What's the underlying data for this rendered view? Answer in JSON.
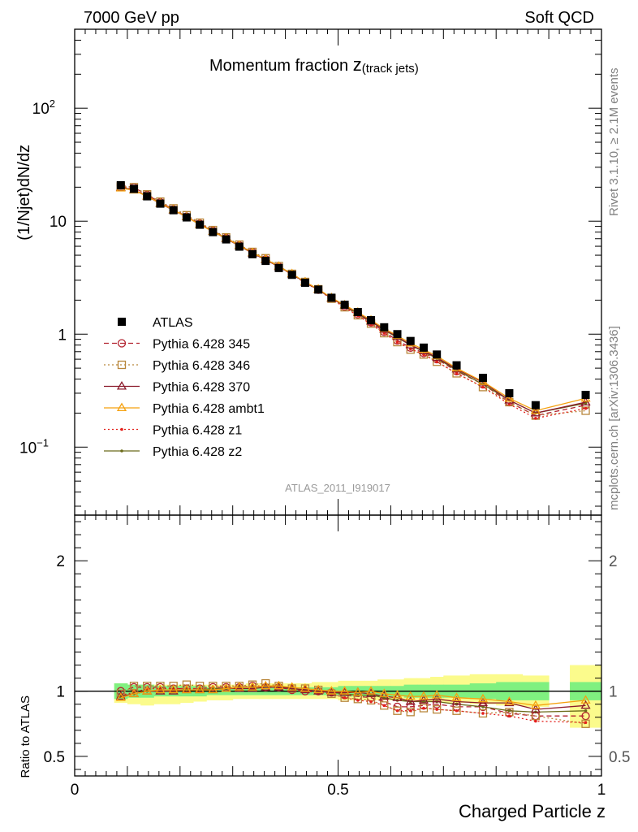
{
  "header": {
    "left": "7000 GeV pp",
    "right": "Soft QCD"
  },
  "side_labels": {
    "rivet": "Rivet 3.1.10, ≥ 2.1M events",
    "mcplots": "mcplots.cern.ch [arXiv:1306.3436]"
  },
  "watermark": "ATLAS_2011_I919017",
  "colors": {
    "atlas": "#000000",
    "p345": "#b2222f",
    "p346": "#b8863b",
    "p370": "#8b1a2b",
    "ambt1": "#f5a10f",
    "z1": "#e3211c",
    "z2": "#6b6b1a",
    "band_inner": "#80f080",
    "band_outer": "#fbfb8c"
  },
  "chart_data": [
    {
      "type": "scatter",
      "title_main": "Momentum fraction ",
      "title_var": "z",
      "title_sub": "(track jets)",
      "ylabel": "(1/Njet)dN/dz",
      "xlim": [
        0,
        1
      ],
      "ylim_log": [
        0.025,
        500
      ],
      "yscale": "log",
      "yticks": [
        {
          "value": 0.1,
          "label": "10",
          "exp": "−1"
        },
        {
          "value": 1,
          "label": "1",
          "exp": ""
        },
        {
          "value": 10,
          "label": "10",
          "exp": ""
        },
        {
          "value": 100,
          "label": "10",
          "exp": "2"
        }
      ],
      "legend_position": "left-middle",
      "x": [
        0.0875,
        0.1125,
        0.1375,
        0.1625,
        0.1875,
        0.2125,
        0.2375,
        0.2625,
        0.2875,
        0.3125,
        0.3375,
        0.3625,
        0.3875,
        0.4125,
        0.4375,
        0.4625,
        0.4875,
        0.5125,
        0.5375,
        0.5625,
        0.5875,
        0.6125,
        0.6375,
        0.6625,
        0.6875,
        0.725,
        0.775,
        0.825,
        0.875,
        0.97
      ],
      "series": [
        {
          "name": "ATLAS",
          "key": "atlas",
          "marker": "square",
          "line": "none",
          "values": [
            20.8,
            19.3,
            16.6,
            14.3,
            12.5,
            10.8,
            9.3,
            8.0,
            6.9,
            5.95,
            5.1,
            4.45,
            3.85,
            3.35,
            2.85,
            2.48,
            2.1,
            1.82,
            1.57,
            1.33,
            1.15,
            1.0,
            0.87,
            0.76,
            0.66,
            0.53,
            0.41,
            0.3,
            0.235,
            0.29
          ]
        },
        {
          "name": "Pythia 6.428 345",
          "key": "p345",
          "marker": "circle-open",
          "line": "dashed",
          "values": [
            20.8,
            19.9,
            17.1,
            14.7,
            12.7,
            11.0,
            9.5,
            8.2,
            7.1,
            6.1,
            5.3,
            4.6,
            3.95,
            3.38,
            2.85,
            2.47,
            2.09,
            1.76,
            1.5,
            1.27,
            1.05,
            0.88,
            0.76,
            0.68,
            0.6,
            0.47,
            0.36,
            0.25,
            0.19,
            0.235
          ]
        },
        {
          "name": "Pythia 6.428 346",
          "key": "p346",
          "marker": "square-open",
          "line": "dotted",
          "values": [
            20.3,
            20.0,
            17.3,
            14.9,
            13.0,
            11.3,
            9.7,
            8.35,
            7.2,
            6.2,
            5.35,
            4.7,
            4.0,
            3.42,
            2.9,
            2.5,
            2.06,
            1.73,
            1.47,
            1.24,
            1.02,
            0.85,
            0.73,
            0.66,
            0.57,
            0.45,
            0.34,
            0.25,
            0.19,
            0.21
          ]
        },
        {
          "name": "Pythia 6.428 370",
          "key": "p370",
          "marker": "triangle-open",
          "line": "solid",
          "values": [
            19.8,
            18.9,
            16.6,
            14.3,
            12.5,
            10.9,
            9.35,
            8.1,
            7.0,
            6.05,
            5.2,
            4.55,
            3.95,
            3.4,
            2.88,
            2.48,
            2.07,
            1.8,
            1.55,
            1.3,
            1.1,
            0.95,
            0.8,
            0.71,
            0.62,
            0.49,
            0.375,
            0.26,
            0.2,
            0.25
          ]
        },
        {
          "name": "Pythia 6.428 ambt1",
          "key": "ambt1",
          "marker": "triangle-open",
          "line": "solid",
          "values": [
            19.6,
            18.8,
            16.6,
            14.4,
            12.6,
            10.9,
            9.35,
            8.1,
            7.05,
            6.1,
            5.25,
            4.6,
            3.98,
            3.42,
            2.9,
            2.5,
            2.1,
            1.81,
            1.56,
            1.33,
            1.12,
            0.97,
            0.83,
            0.73,
            0.64,
            0.5,
            0.38,
            0.27,
            0.21,
            0.27
          ]
        },
        {
          "name": "Pythia 6.428 z1",
          "key": "z1",
          "marker": "dot",
          "line": "dotted",
          "values": [
            20.2,
            19.1,
            16.9,
            14.5,
            12.7,
            11.0,
            9.5,
            8.25,
            7.1,
            6.1,
            5.3,
            4.6,
            3.95,
            3.4,
            2.85,
            2.45,
            2.05,
            1.72,
            1.46,
            1.22,
            1.02,
            0.85,
            0.74,
            0.66,
            0.57,
            0.45,
            0.34,
            0.24,
            0.18,
            0.22
          ]
        },
        {
          "name": "Pythia 6.428 z2",
          "key": "z2",
          "marker": "dot",
          "line": "solid",
          "values": [
            20.0,
            18.9,
            16.7,
            14.4,
            12.6,
            10.9,
            9.4,
            8.15,
            7.05,
            6.1,
            5.25,
            4.6,
            3.98,
            3.42,
            2.88,
            2.47,
            2.08,
            1.78,
            1.52,
            1.29,
            1.09,
            0.93,
            0.8,
            0.7,
            0.61,
            0.48,
            0.36,
            0.26,
            0.2,
            0.245
          ]
        }
      ]
    },
    {
      "type": "scatter",
      "ylabel": "Ratio to ATLAS",
      "xlabel": "Charged Particle z",
      "xlim": [
        0,
        1
      ],
      "ylim": [
        0.35,
        2.35
      ],
      "yticks": [
        {
          "value": 0.5,
          "label": "0.5"
        },
        {
          "value": 1,
          "label": "1"
        },
        {
          "value": 2,
          "label": "2"
        }
      ],
      "xticks": [
        {
          "value": 0,
          "label": "0"
        },
        {
          "value": 0.5,
          "label": "0.5"
        },
        {
          "value": 1,
          "label": "1"
        }
      ],
      "bands": {
        "edges": [
          0.075,
          0.1,
          0.125,
          0.15,
          0.175,
          0.2,
          0.225,
          0.25,
          0.275,
          0.3,
          0.325,
          0.35,
          0.375,
          0.4,
          0.425,
          0.45,
          0.475,
          0.5,
          0.525,
          0.55,
          0.575,
          0.6,
          0.625,
          0.65,
          0.675,
          0.7,
          0.75,
          0.8,
          0.85,
          0.9,
          0.94,
          1.0
        ],
        "gaps": [
          29
        ],
        "inner_lo": [
          0.94,
          0.95,
          0.95,
          0.96,
          0.96,
          0.96,
          0.96,
          0.97,
          0.97,
          0.97,
          0.97,
          0.97,
          0.97,
          0.97,
          0.97,
          0.97,
          0.97,
          0.96,
          0.96,
          0.96,
          0.96,
          0.96,
          0.95,
          0.95,
          0.95,
          0.95,
          0.94,
          0.93,
          0.93,
          0,
          0.93
        ],
        "inner_hi": [
          1.06,
          1.05,
          1.05,
          1.04,
          1.04,
          1.04,
          1.04,
          1.03,
          1.03,
          1.03,
          1.03,
          1.03,
          1.03,
          1.03,
          1.03,
          1.03,
          1.03,
          1.04,
          1.04,
          1.04,
          1.04,
          1.04,
          1.05,
          1.05,
          1.05,
          1.05,
          1.06,
          1.07,
          1.07,
          0,
          1.07
        ],
        "outer_lo": [
          0.91,
          0.9,
          0.89,
          0.9,
          0.9,
          0.91,
          0.92,
          0.93,
          0.93,
          0.94,
          0.94,
          0.94,
          0.94,
          0.94,
          0.94,
          0.94,
          0.94,
          0.93,
          0.93,
          0.93,
          0.93,
          0.93,
          0.92,
          0.92,
          0.92,
          0.91,
          0.9,
          0.89,
          0.88,
          0,
          0.72
        ],
        "outer_hi": [
          1.06,
          1.05,
          1.05,
          1.05,
          1.05,
          1.05,
          1.05,
          1.05,
          1.05,
          1.05,
          1.06,
          1.06,
          1.06,
          1.06,
          1.06,
          1.07,
          1.07,
          1.08,
          1.08,
          1.08,
          1.09,
          1.09,
          1.1,
          1.1,
          1.11,
          1.12,
          1.13,
          1.13,
          1.12,
          0,
          1.2
        ]
      },
      "x": [
        0.0875,
        0.1125,
        0.1375,
        0.1625,
        0.1875,
        0.2125,
        0.2375,
        0.2625,
        0.2875,
        0.3125,
        0.3375,
        0.3625,
        0.3875,
        0.4125,
        0.4375,
        0.4625,
        0.4875,
        0.5125,
        0.5375,
        0.5625,
        0.5875,
        0.6125,
        0.6375,
        0.6625,
        0.6875,
        0.725,
        0.775,
        0.825,
        0.875,
        0.97
      ],
      "series": [
        {
          "name": "Pythia 6.428 345",
          "key": "p345",
          "marker": "circle-open",
          "line": "dashed",
          "values": [
            1.0,
            1.03,
            1.03,
            1.03,
            1.02,
            1.02,
            1.02,
            1.03,
            1.03,
            1.03,
            1.04,
            1.03,
            1.03,
            1.01,
            1.0,
            1.0,
            0.99,
            0.97,
            0.96,
            0.95,
            0.92,
            0.88,
            0.88,
            0.89,
            0.9,
            0.88,
            0.88,
            0.83,
            0.81,
            0.81
          ]
        },
        {
          "name": "Pythia 6.428 346",
          "key": "p346",
          "marker": "square-open",
          "line": "dotted",
          "values": [
            0.98,
            1.04,
            1.04,
            1.04,
            1.04,
            1.05,
            1.04,
            1.04,
            1.04,
            1.04,
            1.05,
            1.06,
            1.04,
            1.02,
            1.02,
            1.01,
            0.98,
            0.95,
            0.94,
            0.93,
            0.89,
            0.85,
            0.84,
            0.87,
            0.86,
            0.85,
            0.83,
            0.84,
            0.81,
            0.75
          ]
        },
        {
          "name": "Pythia 6.428 370",
          "key": "p370",
          "marker": "triangle-open",
          "line": "solid",
          "values": [
            0.96,
            0.98,
            1.0,
            1.0,
            1.0,
            1.01,
            1.01,
            1.01,
            1.02,
            1.02,
            1.02,
            1.03,
            1.03,
            1.02,
            1.01,
            1.0,
            0.99,
            0.99,
            0.99,
            0.98,
            0.96,
            0.95,
            0.92,
            0.93,
            0.94,
            0.92,
            0.91,
            0.91,
            0.86,
            0.89
          ]
        },
        {
          "name": "Pythia 6.428 ambt1",
          "key": "ambt1",
          "marker": "triangle-open",
          "line": "solid",
          "values": [
            0.95,
            0.98,
            1.0,
            1.01,
            1.01,
            1.01,
            1.01,
            1.01,
            1.02,
            1.03,
            1.03,
            1.04,
            1.04,
            1.03,
            1.02,
            1.01,
            1.0,
            1.0,
            0.99,
            1.0,
            0.98,
            0.97,
            0.96,
            0.96,
            0.97,
            0.95,
            0.94,
            0.92,
            0.89,
            0.93
          ]
        },
        {
          "name": "Pythia 6.428 z1",
          "key": "z1",
          "marker": "dot",
          "line": "dotted",
          "values": [
            0.97,
            0.99,
            1.02,
            1.02,
            1.02,
            1.02,
            1.02,
            1.03,
            1.03,
            1.03,
            1.04,
            1.04,
            1.03,
            1.02,
            1.0,
            0.99,
            0.98,
            0.95,
            0.93,
            0.92,
            0.89,
            0.85,
            0.85,
            0.87,
            0.86,
            0.85,
            0.83,
            0.81,
            0.77,
            0.76
          ]
        },
        {
          "name": "Pythia 6.428 z2",
          "key": "z2",
          "marker": "dot",
          "line": "solid",
          "values": [
            0.96,
            0.98,
            1.0,
            1.0,
            1.0,
            1.01,
            1.01,
            1.02,
            1.02,
            1.03,
            1.03,
            1.04,
            1.04,
            1.02,
            1.01,
            1.0,
            0.99,
            0.98,
            0.97,
            0.97,
            0.95,
            0.93,
            0.92,
            0.92,
            0.92,
            0.9,
            0.88,
            0.85,
            0.84,
            0.85
          ]
        }
      ]
    }
  ]
}
